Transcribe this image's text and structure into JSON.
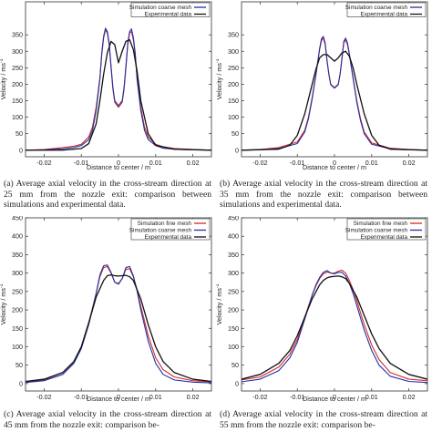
{
  "chart_data": [
    {
      "type": "line",
      "xlabel": "Distance to center / m",
      "ylabel": "Velocity / ms",
      "ylabel_sup": "-1",
      "xlim": [
        -0.025,
        0.025
      ],
      "ylim": [
        -20,
        450
      ],
      "xticks": [
        -0.02,
        -0.01,
        0,
        0.01,
        0.02
      ],
      "xtick_labels": [
        "-0.02",
        "-0.01",
        "0",
        "0.01",
        "0.02"
      ],
      "yticks": [
        0,
        50,
        100,
        150,
        200,
        250,
        300,
        350
      ],
      "ytick_labels": [
        "0",
        "50",
        "100",
        "150",
        "200",
        "250",
        "300",
        "350"
      ],
      "legend": [
        "Simulation coarse mesh",
        "Experimental data"
      ],
      "series": [
        {
          "name": "Simulation fine mesh",
          "color": "#d42a2a",
          "x": [
            -0.025,
            -0.02,
            -0.015,
            -0.012,
            -0.01,
            -0.008,
            -0.007,
            -0.006,
            -0.005,
            -0.0045,
            -0.004,
            -0.0035,
            -0.003,
            -0.0025,
            -0.002,
            -0.0015,
            -0.001,
            0,
            0.001,
            0.0015,
            0.002,
            0.0025,
            0.003,
            0.0035,
            0.004,
            0.0045,
            0.005,
            0.006,
            0.007,
            0.008,
            0.01,
            0.012,
            0.015,
            0.02,
            0.025
          ],
          "y": [
            0,
            2,
            8,
            12,
            18,
            40,
            70,
            130,
            220,
            290,
            340,
            365,
            355,
            320,
            250,
            185,
            145,
            130,
            145,
            185,
            250,
            320,
            355,
            360,
            335,
            290,
            220,
            130,
            70,
            40,
            18,
            10,
            5,
            2,
            0
          ]
        },
        {
          "name": "Simulation coarse mesh",
          "color": "#2030a8",
          "x": [
            -0.025,
            -0.02,
            -0.015,
            -0.012,
            -0.01,
            -0.008,
            -0.007,
            -0.006,
            -0.005,
            -0.0045,
            -0.004,
            -0.0035,
            -0.003,
            -0.0025,
            -0.002,
            -0.0015,
            -0.001,
            0,
            0.001,
            0.0015,
            0.002,
            0.0025,
            0.003,
            0.0035,
            0.004,
            0.0045,
            0.005,
            0.006,
            0.007,
            0.008,
            0.01,
            0.012,
            0.015,
            0.02,
            0.025
          ],
          "y": [
            0,
            1,
            4,
            8,
            14,
            32,
            60,
            120,
            215,
            295,
            345,
            370,
            360,
            325,
            255,
            190,
            150,
            135,
            150,
            190,
            255,
            325,
            360,
            368,
            342,
            295,
            215,
            120,
            60,
            32,
            14,
            6,
            3,
            1,
            0
          ]
        },
        {
          "name": "Experimental data",
          "color": "#111111",
          "x": [
            -0.025,
            -0.015,
            -0.01,
            -0.008,
            -0.006,
            -0.005,
            -0.004,
            -0.003,
            -0.002,
            -0.001,
            0,
            0.001,
            0.002,
            0.003,
            0.004,
            0.005,
            0.006,
            0.008,
            0.01,
            0.015,
            0.025
          ],
          "y": [
            0,
            0,
            5,
            20,
            80,
            150,
            230,
            295,
            330,
            320,
            265,
            300,
            330,
            335,
            305,
            240,
            150,
            50,
            15,
            3,
            0
          ]
        }
      ],
      "caption": "(a) Average axial velocity in the cross-stream direction at 25 mm from the nozzle exit: comparison between simulations and experimental data."
    },
    {
      "type": "line",
      "xlabel": "Distance to center / m",
      "ylabel": "Velocity / ms",
      "ylabel_sup": "-1",
      "xlim": [
        -0.025,
        0.025
      ],
      "ylim": [
        -20,
        450
      ],
      "xticks": [
        -0.02,
        -0.01,
        0,
        0.01,
        0.02
      ],
      "xtick_labels": [
        "-0.02",
        "-0.01",
        "0",
        "0.01",
        "0.02"
      ],
      "yticks": [
        0,
        50,
        100,
        150,
        200,
        250,
        300,
        350
      ],
      "ytick_labels": [
        "0",
        "50",
        "100",
        "150",
        "200",
        "250",
        "300",
        "350"
      ],
      "legend": [
        "Simulation coarse mesh",
        "Experimental data"
      ],
      "series": [
        {
          "name": "Simulation fine mesh",
          "color": "#d42a2a",
          "x": [
            -0.025,
            -0.02,
            -0.015,
            -0.01,
            -0.008,
            -0.007,
            -0.006,
            -0.005,
            -0.004,
            -0.0035,
            -0.003,
            -0.0025,
            -0.002,
            -0.0015,
            -0.001,
            0,
            0.001,
            0.0015,
            0.002,
            0.0025,
            0.003,
            0.0035,
            0.004,
            0.005,
            0.006,
            0.007,
            0.008,
            0.01,
            0.015,
            0.02,
            0.025
          ],
          "y": [
            0,
            2,
            8,
            25,
            60,
            100,
            160,
            230,
            305,
            332,
            340,
            320,
            270,
            230,
            200,
            190,
            200,
            230,
            275,
            325,
            335,
            320,
            290,
            220,
            150,
            95,
            55,
            22,
            6,
            2,
            0
          ]
        },
        {
          "name": "Simulation coarse mesh",
          "color": "#2030a8",
          "x": [
            -0.025,
            -0.02,
            -0.015,
            -0.01,
            -0.008,
            -0.007,
            -0.006,
            -0.005,
            -0.004,
            -0.0035,
            -0.003,
            -0.0025,
            -0.002,
            -0.0015,
            -0.001,
            0,
            0.001,
            0.0015,
            0.002,
            0.0025,
            0.003,
            0.0035,
            0.004,
            0.005,
            0.006,
            0.007,
            0.008,
            0.01,
            0.015,
            0.02,
            0.025
          ],
          "y": [
            0,
            1,
            5,
            20,
            55,
            95,
            155,
            228,
            308,
            338,
            345,
            325,
            272,
            230,
            198,
            188,
            198,
            230,
            278,
            330,
            340,
            325,
            292,
            218,
            145,
            90,
            50,
            18,
            4,
            1,
            0
          ]
        },
        {
          "name": "Experimental data",
          "color": "#111111",
          "x": [
            -0.025,
            -0.015,
            -0.012,
            -0.01,
            -0.008,
            -0.006,
            -0.005,
            -0.004,
            -0.003,
            -0.002,
            -0.001,
            0,
            0.001,
            0.002,
            0.003,
            0.004,
            0.005,
            0.006,
            0.008,
            0.01,
            0.012,
            0.015,
            0.025
          ],
          "y": [
            0,
            3,
            15,
            45,
            110,
            200,
            245,
            280,
            290,
            290,
            280,
            270,
            280,
            295,
            300,
            285,
            250,
            200,
            110,
            45,
            15,
            3,
            0
          ]
        }
      ],
      "caption": "(b) Average axial velocity in the cross-stream direction at 35 mm from the nozzle exit: comparison between simulations and experimental data."
    },
    {
      "type": "line",
      "xlabel": "Distance to center / m",
      "ylabel": "Velocity / ms",
      "ylabel_sup": "-1",
      "xlim": [
        -0.025,
        0.025
      ],
      "ylim": [
        -20,
        450
      ],
      "xticks": [
        -0.02,
        -0.01,
        0,
        0.01,
        0.02
      ],
      "xtick_labels": [
        "-0.02",
        "-0.01",
        "0",
        "0.01",
        "0.02"
      ],
      "yticks": [
        0,
        50,
        100,
        150,
        200,
        250,
        300,
        350,
        400,
        450
      ],
      "ytick_labels": [
        "0",
        "50",
        "100",
        "150",
        "200",
        "250",
        "300",
        "350",
        "400",
        "450"
      ],
      "legend": [
        "Simulation fine mesh",
        "Simulation coarse mesh",
        "Experimental data"
      ],
      "series": [
        {
          "name": "Simulation fine mesh",
          "color": "#d42a2a",
          "x": [
            -0.025,
            -0.02,
            -0.015,
            -0.012,
            -0.01,
            -0.008,
            -0.006,
            -0.005,
            -0.004,
            -0.003,
            -0.002,
            -0.001,
            0,
            0.001,
            0.002,
            0.003,
            0.004,
            0.005,
            0.006,
            0.008,
            0.01,
            0.012,
            0.015,
            0.02,
            0.025
          ],
          "y": [
            5,
            10,
            30,
            60,
            100,
            165,
            245,
            290,
            315,
            318,
            300,
            275,
            272,
            285,
            310,
            312,
            290,
            255,
            210,
            130,
            70,
            38,
            18,
            8,
            5
          ]
        },
        {
          "name": "Simulation coarse mesh",
          "color": "#2030a8",
          "x": [
            -0.025,
            -0.02,
            -0.015,
            -0.012,
            -0.01,
            -0.008,
            -0.006,
            -0.005,
            -0.004,
            -0.003,
            -0.002,
            -0.001,
            0,
            0.001,
            0.002,
            0.003,
            0.004,
            0.005,
            0.006,
            0.008,
            0.01,
            0.012,
            0.015,
            0.02,
            0.025
          ],
          "y": [
            3,
            8,
            25,
            55,
            95,
            160,
            245,
            295,
            320,
            322,
            302,
            275,
            270,
            285,
            315,
            318,
            292,
            252,
            200,
            115,
            55,
            25,
            10,
            4,
            2
          ]
        },
        {
          "name": "Experimental data",
          "color": "#111111",
          "x": [
            -0.025,
            -0.02,
            -0.015,
            -0.012,
            -0.01,
            -0.008,
            -0.006,
            -0.004,
            -0.003,
            -0.002,
            -0.001,
            0,
            0.001,
            0.002,
            0.003,
            0.004,
            0.006,
            0.008,
            0.01,
            0.012,
            0.015,
            0.02,
            0.025
          ],
          "y": [
            6,
            12,
            30,
            60,
            100,
            165,
            235,
            280,
            293,
            295,
            293,
            292,
            293,
            294,
            290,
            280,
            230,
            160,
            100,
            60,
            30,
            12,
            6
          ]
        }
      ],
      "caption": "(c) Average axial velocity in the cross-stream direction at 45 mm from the nozzle exit: comparison be-"
    },
    {
      "type": "line",
      "xlabel": "Distance to center / m",
      "ylabel": "Velocity / ms",
      "ylabel_sup": "-1",
      "xlim": [
        -0.025,
        0.025
      ],
      "ylim": [
        -20,
        450
      ],
      "xticks": [
        -0.02,
        -0.01,
        0,
        0.01,
        0.02
      ],
      "xtick_labels": [
        "-0.02",
        "-0.01",
        "0",
        "0.01",
        "0.02"
      ],
      "yticks": [
        0,
        50,
        100,
        150,
        200,
        250,
        300,
        350,
        400,
        450
      ],
      "ytick_labels": [
        "0",
        "50",
        "100",
        "150",
        "200",
        "250",
        "300",
        "350",
        "400",
        "450"
      ],
      "legend": [
        "Simulation fine mesh",
        "Simulation coarse mesh",
        "Experimental data"
      ],
      "series": [
        {
          "name": "Simulation fine mesh",
          "color": "#d42a2a",
          "x": [
            -0.025,
            -0.02,
            -0.015,
            -0.012,
            -0.01,
            -0.008,
            -0.006,
            -0.005,
            -0.004,
            -0.003,
            -0.002,
            -0.001,
            0,
            0.001,
            0.002,
            0.003,
            0.004,
            0.005,
            0.006,
            0.008,
            0.01,
            0.012,
            0.015,
            0.02,
            0.025
          ],
          "y": [
            10,
            18,
            45,
            80,
            120,
            180,
            240,
            265,
            285,
            298,
            303,
            300,
            300,
            305,
            308,
            300,
            280,
            255,
            225,
            160,
            105,
            65,
            30,
            12,
            8
          ]
        },
        {
          "name": "Simulation coarse mesh",
          "color": "#2030a8",
          "x": [
            -0.025,
            -0.02,
            -0.015,
            -0.012,
            -0.01,
            -0.008,
            -0.006,
            -0.005,
            -0.004,
            -0.003,
            -0.002,
            -0.001,
            0,
            0.001,
            0.002,
            0.003,
            0.004,
            0.005,
            0.006,
            0.008,
            0.01,
            0.012,
            0.015,
            0.02,
            0.025
          ],
          "y": [
            5,
            12,
            35,
            70,
            112,
            175,
            240,
            268,
            288,
            302,
            307,
            300,
            298,
            302,
            302,
            292,
            272,
            245,
            212,
            145,
            90,
            50,
            20,
            6,
            3
          ]
        },
        {
          "name": "Experimental data",
          "color": "#111111",
          "x": [
            -0.025,
            -0.02,
            -0.015,
            -0.012,
            -0.01,
            -0.008,
            -0.006,
            -0.004,
            -0.003,
            -0.002,
            -0.001,
            0,
            0.001,
            0.002,
            0.003,
            0.004,
            0.006,
            0.008,
            0.01,
            0.012,
            0.015,
            0.02,
            0.025
          ],
          "y": [
            12,
            25,
            55,
            90,
            130,
            180,
            230,
            268,
            280,
            287,
            290,
            291,
            292,
            290,
            285,
            272,
            235,
            185,
            135,
            95,
            55,
            25,
            12
          ]
        }
      ],
      "caption": "(d) Average axial velocity in the cross-stream direction at 55 mm from the nozzle exit: comparison be-"
    }
  ]
}
